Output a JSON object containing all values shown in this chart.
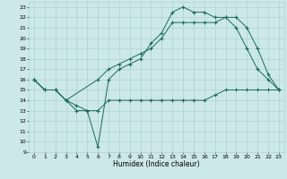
{
  "xlabel": "Humidex (Indice chaleur)",
  "bg_color": "#cce8e8",
  "grid_color": "#aacece",
  "line_color": "#1a6b5a",
  "xlim": [
    -0.5,
    23.5
  ],
  "ylim": [
    9,
    23.5
  ],
  "xticks": [
    0,
    1,
    2,
    3,
    4,
    5,
    6,
    7,
    8,
    9,
    10,
    11,
    12,
    13,
    14,
    15,
    16,
    17,
    18,
    19,
    20,
    21,
    22,
    23
  ],
  "yticks": [
    9,
    10,
    11,
    12,
    13,
    14,
    15,
    16,
    17,
    18,
    19,
    20,
    21,
    22,
    23
  ],
  "line1_x": [
    0,
    1,
    2,
    3,
    4,
    5,
    6,
    7,
    8,
    9,
    10,
    11,
    12,
    13,
    14,
    15,
    16,
    17,
    18,
    19,
    20,
    21,
    22,
    23
  ],
  "line1_y": [
    16,
    15,
    15,
    14,
    13,
    13,
    9.5,
    16,
    17,
    17.5,
    18,
    19.5,
    20.5,
    22.5,
    23,
    22.5,
    22.5,
    22,
    22,
    21,
    19,
    17,
    16,
    15
  ],
  "line2_x": [
    0,
    1,
    2,
    3,
    6,
    7,
    8,
    9,
    10,
    11,
    12,
    13,
    14,
    15,
    16,
    17,
    18,
    19,
    20,
    21,
    22,
    23
  ],
  "line2_y": [
    16,
    15,
    15,
    14,
    16,
    17,
    17.5,
    18,
    18.5,
    19,
    20,
    21.5,
    21.5,
    21.5,
    21.5,
    21.5,
    22,
    22,
    21,
    19,
    16.5,
    15
  ],
  "line3_x": [
    0,
    1,
    2,
    3,
    4,
    5,
    6,
    7,
    8,
    9,
    10,
    11,
    12,
    13,
    14,
    15,
    16,
    17,
    18,
    19,
    20,
    21,
    22,
    23
  ],
  "line3_y": [
    16,
    15,
    15,
    14,
    13.5,
    13,
    13,
    14,
    14,
    14,
    14,
    14,
    14,
    14,
    14,
    14,
    14,
    14.5,
    15,
    15,
    15,
    15,
    15,
    15
  ]
}
